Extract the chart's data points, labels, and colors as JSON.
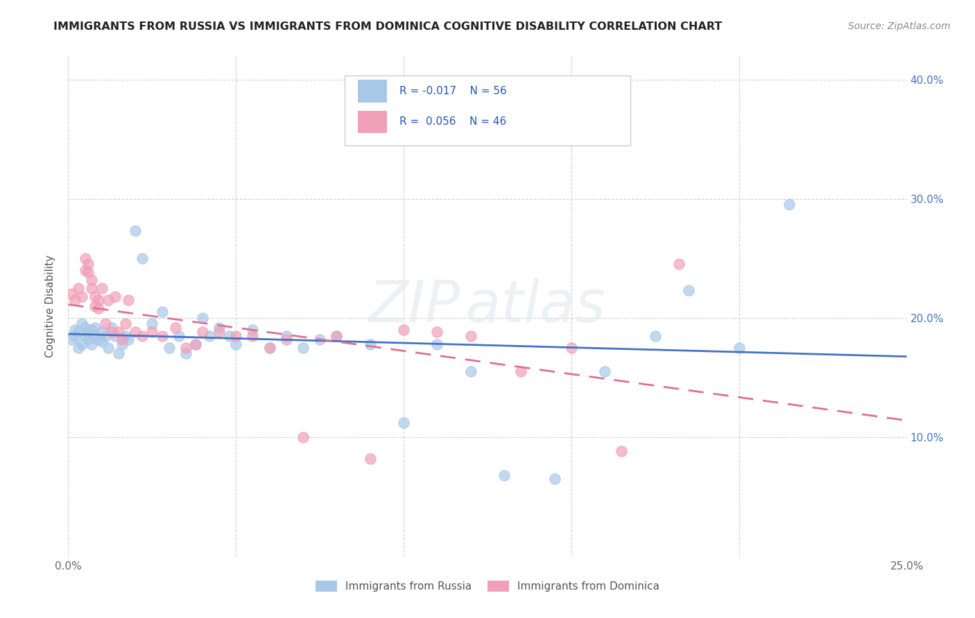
{
  "title": "IMMIGRANTS FROM RUSSIA VS IMMIGRANTS FROM DOMINICA COGNITIVE DISABILITY CORRELATION CHART",
  "source": "Source: ZipAtlas.com",
  "ylabel": "Cognitive Disability",
  "xlim": [
    0.0,
    0.25
  ],
  "ylim": [
    0.0,
    0.42
  ],
  "xticks": [
    0.0,
    0.05,
    0.1,
    0.15,
    0.2,
    0.25
  ],
  "yticks": [
    0.0,
    0.1,
    0.2,
    0.3,
    0.4
  ],
  "xtick_labels": [
    "0.0%",
    "",
    "",
    "",
    "",
    "25.0%"
  ],
  "ytick_labels_right": [
    "",
    "10.0%",
    "20.0%",
    "30.0%",
    "40.0%"
  ],
  "legend_labels": [
    "Immigrants from Russia",
    "Immigrants from Dominica"
  ],
  "watermark": "ZIPAtlas",
  "r_russia": -0.017,
  "n_russia": 56,
  "r_dominica": 0.056,
  "n_dominica": 46,
  "color_russia": "#a8c8e8",
  "color_dominica": "#f0a0b8",
  "line_color_russia": "#4472c4",
  "line_color_dominica": "#e07090",
  "russia_x": [
    0.001,
    0.002,
    0.002,
    0.003,
    0.003,
    0.004,
    0.004,
    0.005,
    0.005,
    0.006,
    0.006,
    0.007,
    0.007,
    0.008,
    0.008,
    0.009,
    0.01,
    0.01,
    0.011,
    0.012,
    0.013,
    0.014,
    0.015,
    0.016,
    0.017,
    0.018,
    0.02,
    0.022,
    0.025,
    0.028,
    0.03,
    0.033,
    0.035,
    0.038,
    0.04,
    0.042,
    0.045,
    0.048,
    0.05,
    0.055,
    0.06,
    0.065,
    0.07,
    0.075,
    0.08,
    0.09,
    0.1,
    0.11,
    0.12,
    0.13,
    0.145,
    0.16,
    0.175,
    0.185,
    0.2,
    0.215
  ],
  "russia_y": [
    0.182,
    0.19,
    0.185,
    0.188,
    0.175,
    0.195,
    0.178,
    0.185,
    0.192,
    0.188,
    0.182,
    0.178,
    0.19,
    0.185,
    0.192,
    0.182,
    0.188,
    0.18,
    0.185,
    0.175,
    0.192,
    0.185,
    0.17,
    0.178,
    0.185,
    0.182,
    0.273,
    0.25,
    0.195,
    0.205,
    0.175,
    0.185,
    0.17,
    0.178,
    0.2,
    0.185,
    0.192,
    0.185,
    0.178,
    0.19,
    0.175,
    0.185,
    0.175,
    0.182,
    0.185,
    0.178,
    0.112,
    0.178,
    0.155,
    0.068,
    0.065,
    0.155,
    0.185,
    0.223,
    0.175,
    0.295
  ],
  "dominica_x": [
    0.001,
    0.002,
    0.003,
    0.004,
    0.005,
    0.005,
    0.006,
    0.006,
    0.007,
    0.007,
    0.008,
    0.008,
    0.009,
    0.009,
    0.01,
    0.011,
    0.012,
    0.013,
    0.014,
    0.015,
    0.016,
    0.017,
    0.018,
    0.02,
    0.022,
    0.025,
    0.028,
    0.032,
    0.035,
    0.038,
    0.04,
    0.045,
    0.05,
    0.055,
    0.06,
    0.065,
    0.07,
    0.08,
    0.09,
    0.1,
    0.11,
    0.12,
    0.135,
    0.15,
    0.165,
    0.182
  ],
  "dominica_y": [
    0.22,
    0.215,
    0.225,
    0.218,
    0.24,
    0.25,
    0.238,
    0.245,
    0.232,
    0.225,
    0.21,
    0.218,
    0.215,
    0.208,
    0.225,
    0.195,
    0.215,
    0.188,
    0.218,
    0.188,
    0.182,
    0.195,
    0.215,
    0.188,
    0.185,
    0.188,
    0.185,
    0.192,
    0.175,
    0.178,
    0.188,
    0.188,
    0.185,
    0.185,
    0.175,
    0.182,
    0.1,
    0.185,
    0.082,
    0.19,
    0.188,
    0.185,
    0.155,
    0.175,
    0.088,
    0.245
  ]
}
